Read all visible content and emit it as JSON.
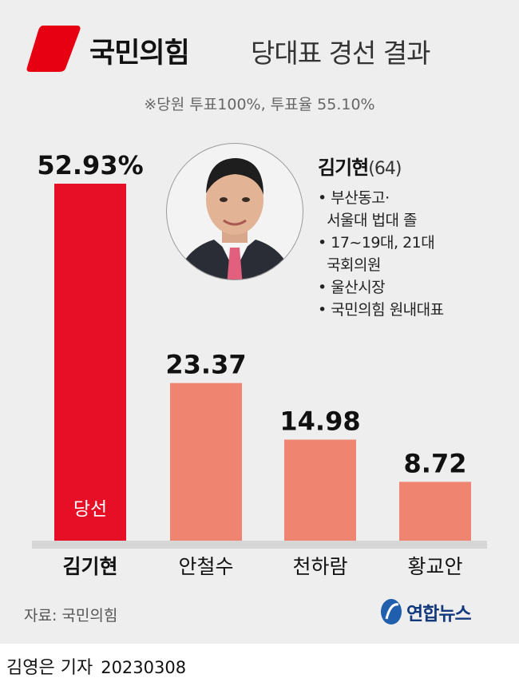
{
  "header": {
    "party": "국민의힘",
    "title": "당대표 경선 결과",
    "subtitle": "※당원 투표100%, 투표율 55.10%",
    "party_color": "#e60012"
  },
  "chart_data": {
    "type": "bar",
    "categories": [
      "김기현",
      "안철수",
      "천하람",
      "황교안"
    ],
    "values": [
      52.93,
      23.37,
      14.98,
      8.72
    ],
    "value_labels": [
      "52.93%",
      "23.37",
      "14.98",
      "8.72"
    ],
    "ylim": [
      0,
      55
    ],
    "winner_index": 0,
    "winner_label": "당선",
    "colors": {
      "winner": "#e60f26",
      "others": "#ef8570"
    }
  },
  "profile": {
    "name": "김기현",
    "age": "(64)",
    "items": [
      "• 부산동고·",
      "  서울대 법대 졸",
      "• 17~19대, 21대",
      "  국회의원",
      "• 울산시장",
      "• 국민의힘 원내대표"
    ]
  },
  "footer": {
    "source": "자료: 국민의힘",
    "brand": "연합뉴스",
    "reporter": "김영은 기자",
    "date": "20230308"
  }
}
